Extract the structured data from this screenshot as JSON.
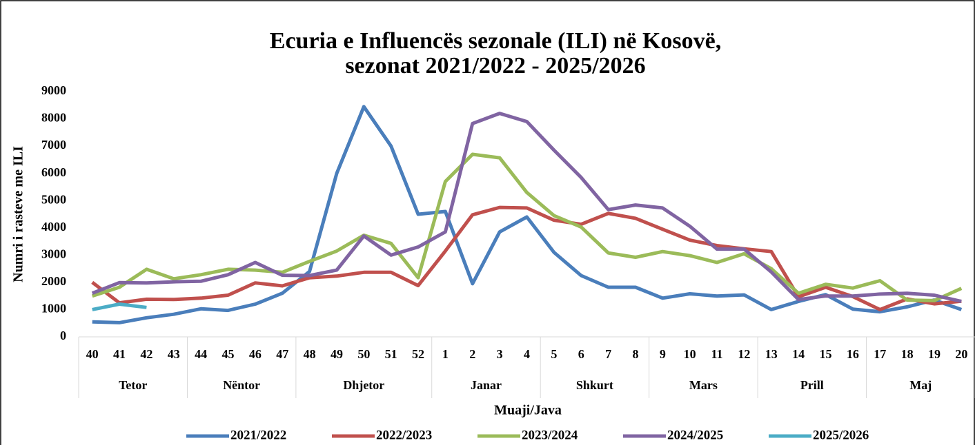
{
  "chart_data": {
    "type": "line",
    "title": [
      "Ecuria e Influencës sezonale (ILI) në Kosovë,",
      "sezonat 2021/2022 - 2025/2026"
    ],
    "y_label": "Numri i rasteve me ILI",
    "x_label": "Muaji/Java",
    "categories": [
      "40",
      "41",
      "42",
      "43",
      "44",
      "45",
      "46",
      "47",
      "48",
      "49",
      "50",
      "51",
      "52",
      "1",
      "2",
      "3",
      "4",
      "5",
      "6",
      "7",
      "8",
      "9",
      "10",
      "11",
      "12",
      "13",
      "14",
      "15",
      "16",
      "17",
      "18",
      "19",
      "20"
    ],
    "months": [
      {
        "name": "Tetor",
        "weeks": 4
      },
      {
        "name": "Nëntor",
        "weeks": 4
      },
      {
        "name": "Dhjetor",
        "weeks": 5
      },
      {
        "name": "Janar",
        "weeks": 4
      },
      {
        "name": "Shkurt",
        "weeks": 4
      },
      {
        "name": "Mars",
        "weeks": 4
      },
      {
        "name": "Prill",
        "weeks": 4
      },
      {
        "name": "Maj",
        "weeks": 4
      }
    ],
    "ylim": [
      0,
      9000
    ],
    "yticks": [
      0,
      1000,
      2000,
      3000,
      4000,
      5000,
      6000,
      7000,
      8000,
      9000
    ],
    "legend": "bottom",
    "series": [
      {
        "name": "2021/2022",
        "color": "#4a7ebb",
        "values": [
          550,
          520,
          700,
          830,
          1030,
          970,
          1200,
          1600,
          2400,
          6000,
          8450,
          7000,
          4500,
          4600,
          1950,
          3850,
          4400,
          3100,
          2250,
          1820,
          1820,
          1420,
          1580,
          1500,
          1540,
          1000,
          1300,
          1550,
          1020,
          920,
          1100,
          1350,
          1000
        ]
      },
      {
        "name": "2022/2023",
        "color": "#c0504d",
        "values": [
          2000,
          1250,
          1380,
          1370,
          1420,
          1530,
          1980,
          1870,
          2170,
          2230,
          2370,
          2370,
          1880,
          3150,
          4480,
          4750,
          4730,
          4280,
          4130,
          4530,
          4350,
          3950,
          3550,
          3350,
          3230,
          3130,
          1470,
          1820,
          1480,
          1000,
          1390,
          1210,
          1310
        ]
      },
      {
        "name": "2023/2024",
        "color": "#9bbb59",
        "values": [
          1500,
          1820,
          2480,
          2130,
          2280,
          2480,
          2450,
          2370,
          2770,
          3150,
          3730,
          3430,
          2170,
          5700,
          6700,
          6570,
          5300,
          4450,
          4030,
          3080,
          2920,
          3130,
          2980,
          2730,
          3050,
          2500,
          1600,
          1930,
          1790,
          2060,
          1350,
          1330,
          1780
        ]
      },
      {
        "name": "2024/2025",
        "color": "#8064a2",
        "values": [
          1600,
          1990,
          1980,
          2020,
          2040,
          2280,
          2730,
          2260,
          2250,
          2450,
          3700,
          3000,
          3300,
          3850,
          7830,
          8200,
          7900,
          6850,
          5850,
          4670,
          4840,
          4730,
          4060,
          3220,
          3220,
          2380,
          1370,
          1500,
          1500,
          1570,
          1600,
          1530,
          1300
        ]
      },
      {
        "name": "2025/2026",
        "color": "#4bacc6",
        "values": [
          1000,
          1200,
          1080,
          null,
          null,
          null,
          null,
          null,
          null,
          null,
          null,
          null,
          null,
          null,
          null,
          null,
          null,
          null,
          null,
          null,
          null,
          null,
          null,
          null,
          null,
          null,
          null,
          null,
          null,
          null,
          null,
          null,
          null
        ]
      }
    ]
  }
}
